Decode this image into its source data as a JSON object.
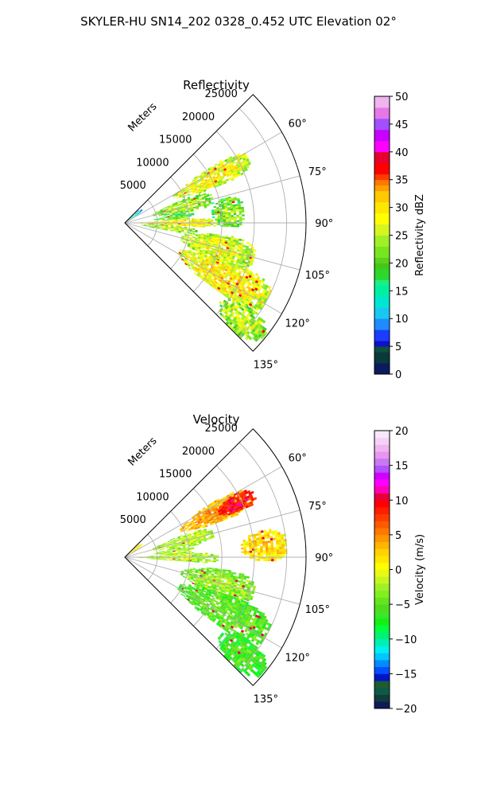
{
  "figure_title": "SKYLER-HU  SN14_202  0328_0.452 UTC Elevation 02°",
  "chart_data": [
    {
      "type": "heatmap",
      "projection": "polar-sector",
      "title": "Reflectivity",
      "range_axis_label": "Meters",
      "range_ticks": [
        5000,
        10000,
        15000,
        20000,
        25000
      ],
      "range_tick_labels": [
        "5000",
        "10000",
        "15000",
        "20000",
        "25000"
      ],
      "range_max": 28000,
      "azimuth_range": [
        45,
        135
      ],
      "azimuth_ticks": [
        60,
        75,
        90,
        105,
        120,
        135
      ],
      "azimuth_tick_labels": [
        "60°",
        "75°",
        "90°",
        "105°",
        "120°",
        "135°"
      ],
      "grid": true,
      "colorbar": {
        "label": "Reflectivity dBZ",
        "range": [
          0,
          50
        ],
        "ticks": [
          0,
          5,
          10,
          15,
          20,
          25,
          30,
          35,
          40,
          45,
          50
        ],
        "tick_labels": [
          "0",
          "5",
          "10",
          "15",
          "20",
          "25",
          "30",
          "35",
          "40",
          "45",
          "50"
        ]
      },
      "echo_regions": [
        {
          "az": [
            57,
            68
          ],
          "r": [
            8500,
            21500
          ],
          "value": 25
        },
        {
          "az": [
            68,
            80
          ],
          "r": [
            4500,
            14000
          ],
          "value": 21
        },
        {
          "az": [
            80,
            86
          ],
          "r": [
            4500,
            10500
          ],
          "value": 18
        },
        {
          "az": [
            86,
            93
          ],
          "r": [
            1500,
            14500
          ],
          "value": 26
        },
        {
          "az": [
            93,
            100
          ],
          "r": [
            2500,
            11000
          ],
          "value": 21
        },
        {
          "az": [
            76,
            92
          ],
          "r": [
            13500,
            18500
          ],
          "value": 20
        },
        {
          "az": [
            97,
            112
          ],
          "r": [
            9000,
            20500
          ],
          "value": 24
        },
        {
          "az": [
            110,
            126
          ],
          "r": [
            9500,
            25000
          ],
          "value": 26
        },
        {
          "az": [
            124,
            134
          ],
          "r": [
            19000,
            27500
          ],
          "value": 22
        },
        {
          "az": [
            45,
            60
          ],
          "r": [
            0,
            3000
          ],
          "value": 10
        }
      ]
    },
    {
      "type": "heatmap",
      "projection": "polar-sector",
      "title": "Velocity",
      "range_axis_label": "Meters",
      "range_ticks": [
        5000,
        10000,
        15000,
        20000,
        25000
      ],
      "range_tick_labels": [
        "5000",
        "10000",
        "15000",
        "20000",
        "25000"
      ],
      "range_max": 28000,
      "azimuth_range": [
        45,
        135
      ],
      "azimuth_ticks": [
        60,
        75,
        90,
        105,
        120,
        135
      ],
      "azimuth_tick_labels": [
        "60°",
        "75°",
        "90°",
        "105°",
        "120°",
        "135°"
      ],
      "grid": true,
      "colorbar": {
        "label": "Velocity (m/s)",
        "range": [
          -20,
          20
        ],
        "ticks": [
          -20,
          -15,
          -10,
          -5,
          0,
          5,
          10,
          15,
          20
        ],
        "tick_labels": [
          "−20",
          "−15",
          "−10",
          "−5",
          "0",
          "5",
          "10",
          "15",
          "20"
        ]
      },
      "echo_regions": [
        {
          "az": [
            58,
            69
          ],
          "r": [
            9500,
            21500
          ],
          "value": 3
        },
        {
          "az": [
            60,
            68
          ],
          "r": [
            16000,
            22000
          ],
          "value": 8
        },
        {
          "az": [
            69,
            80
          ],
          "r": [
            4500,
            14000
          ],
          "value": -3
        },
        {
          "az": [
            80,
            86
          ],
          "r": [
            4500,
            10500
          ],
          "value": -3
        },
        {
          "az": [
            86,
            94
          ],
          "r": [
            1500,
            14500
          ],
          "value": -3
        },
        {
          "az": [
            79,
            91
          ],
          "r": [
            18000,
            25000
          ],
          "value": 1
        },
        {
          "az": [
            97,
            112
          ],
          "r": [
            9000,
            20500
          ],
          "value": -4
        },
        {
          "az": [
            110,
            126
          ],
          "r": [
            9500,
            25000
          ],
          "value": -6
        },
        {
          "az": [
            124,
            134
          ],
          "r": [
            19000,
            27500
          ],
          "value": -7
        },
        {
          "az": [
            45,
            60
          ],
          "r": [
            0,
            3000
          ],
          "value": 0
        }
      ]
    }
  ]
}
